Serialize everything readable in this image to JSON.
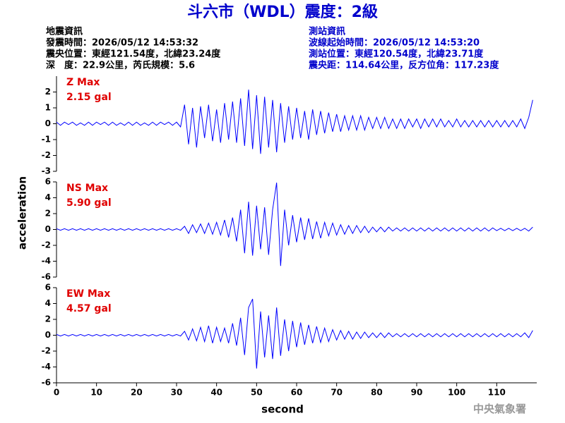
{
  "title": "斗六市（WDL）震度：2級",
  "left_info": [
    "地震資訊",
    "發震時間：2026/05/12 14:53:32",
    "震央位置：東經121.54度，北緯23.24度",
    "深　度：22.9公里，芮氏規模：5.6"
  ],
  "right_info": [
    "測站資訊",
    "波線起始時間：2026/05/12 14:53:20",
    "測站位置：東經120.54度，北緯23.71度",
    "震央距：114.64公里，反方位角：117.23度"
  ],
  "xlabel": "second",
  "ylabel": "acceleration",
  "footer": "中央氣象署",
  "xlim": [
    0,
    120
  ],
  "xticks": [
    0,
    10,
    20,
    30,
    40,
    50,
    60,
    70,
    80,
    90,
    100,
    110
  ],
  "chart_data": [
    {
      "type": "line",
      "label": "Z Max",
      "max_label": "2.15 gal",
      "color": "#0000ff",
      "ylim": [
        -3,
        3
      ],
      "yticks": [
        -3,
        -2,
        -1,
        0,
        1,
        2
      ],
      "x": [
        0,
        1,
        2,
        3,
        4,
        5,
        6,
        7,
        8,
        9,
        10,
        11,
        12,
        13,
        14,
        15,
        16,
        17,
        18,
        19,
        20,
        21,
        22,
        23,
        24,
        25,
        26,
        27,
        28,
        29,
        30,
        31,
        32,
        33,
        34,
        35,
        36,
        37,
        38,
        39,
        40,
        41,
        42,
        43,
        44,
        45,
        46,
        47,
        48,
        49,
        50,
        51,
        52,
        53,
        54,
        55,
        56,
        57,
        58,
        59,
        60,
        61,
        62,
        63,
        64,
        65,
        66,
        67,
        68,
        69,
        70,
        71,
        72,
        73,
        74,
        75,
        76,
        77,
        78,
        79,
        80,
        81,
        82,
        83,
        84,
        85,
        86,
        87,
        88,
        89,
        90,
        91,
        92,
        93,
        94,
        95,
        96,
        97,
        98,
        99,
        100,
        101,
        102,
        103,
        104,
        105,
        106,
        107,
        108,
        109,
        110,
        111,
        112,
        113,
        114,
        115,
        116,
        117,
        118,
        119
      ],
      "values": [
        0.1,
        -0.1,
        0.1,
        -0.05,
        0.1,
        -0.1,
        0.05,
        -0.1,
        0.1,
        -0.1,
        0.1,
        -0.05,
        0.1,
        -0.1,
        0.1,
        -0.1,
        0.05,
        -0.1,
        0.1,
        -0.1,
        0.1,
        -0.1,
        0.05,
        -0.1,
        0.1,
        -0.1,
        0.1,
        -0.05,
        0.1,
        -0.1,
        0.1,
        -0.2,
        1.2,
        -1.3,
        1.0,
        -1.5,
        1.1,
        -0.9,
        1.2,
        -1.1,
        0.9,
        -1.2,
        1.3,
        -1.0,
        1.4,
        -1.2,
        1.6,
        -1.4,
        2.15,
        -1.6,
        1.8,
        -1.9,
        1.7,
        -1.5,
        1.5,
        -1.8,
        1.3,
        -1.2,
        1.1,
        -1.0,
        1.0,
        -0.9,
        0.8,
        -1.0,
        0.9,
        -0.7,
        0.8,
        -0.6,
        0.7,
        -0.5,
        0.6,
        -0.5,
        0.5,
        -0.4,
        0.5,
        -0.4,
        0.5,
        -0.4,
        0.4,
        -0.3,
        0.4,
        -0.3,
        0.4,
        -0.3,
        0.3,
        -0.3,
        0.3,
        -0.3,
        0.3,
        -0.2,
        0.3,
        -0.3,
        0.3,
        -0.2,
        0.3,
        -0.2,
        0.3,
        -0.2,
        0.2,
        -0.2,
        0.3,
        -0.2,
        0.2,
        -0.2,
        0.2,
        -0.2,
        0.2,
        -0.2,
        0.2,
        -0.2,
        0.2,
        -0.2,
        0.2,
        -0.2,
        0.2,
        -0.2,
        0.3,
        -0.3,
        0.4,
        1.5
      ]
    },
    {
      "type": "line",
      "label": "NS Max",
      "max_label": "5.90 gal",
      "color": "#0000ff",
      "ylim": [
        -6,
        6
      ],
      "yticks": [
        -6,
        -4,
        -2,
        0,
        2,
        4,
        6
      ],
      "x": [
        0,
        1,
        2,
        3,
        4,
        5,
        6,
        7,
        8,
        9,
        10,
        11,
        12,
        13,
        14,
        15,
        16,
        17,
        18,
        19,
        20,
        21,
        22,
        23,
        24,
        25,
        26,
        27,
        28,
        29,
        30,
        31,
        32,
        33,
        34,
        35,
        36,
        37,
        38,
        39,
        40,
        41,
        42,
        43,
        44,
        45,
        46,
        47,
        48,
        49,
        50,
        51,
        52,
        53,
        54,
        55,
        56,
        57,
        58,
        59,
        60,
        61,
        62,
        63,
        64,
        65,
        66,
        67,
        68,
        69,
        70,
        71,
        72,
        73,
        74,
        75,
        76,
        77,
        78,
        79,
        80,
        81,
        82,
        83,
        84,
        85,
        86,
        87,
        88,
        89,
        90,
        91,
        92,
        93,
        94,
        95,
        96,
        97,
        98,
        99,
        100,
        101,
        102,
        103,
        104,
        105,
        106,
        107,
        108,
        109,
        110,
        111,
        112,
        113,
        114,
        115,
        116,
        117,
        118,
        119
      ],
      "values": [
        0.1,
        -0.1,
        0.1,
        -0.1,
        0.1,
        -0.1,
        0.1,
        -0.1,
        0.1,
        -0.1,
        0.1,
        -0.1,
        0.1,
        -0.1,
        0.1,
        -0.1,
        0.1,
        -0.1,
        0.1,
        -0.1,
        0.1,
        -0.1,
        0.1,
        -0.1,
        0.1,
        -0.1,
        0.1,
        -0.1,
        0.1,
        -0.1,
        0.1,
        -0.1,
        0.4,
        -0.5,
        0.6,
        -0.4,
        0.7,
        -0.5,
        0.8,
        -0.6,
        0.9,
        -0.7,
        1.2,
        -1.0,
        1.5,
        -1.5,
        2.5,
        -3.0,
        3.5,
        -3.3,
        3.0,
        -2.5,
        2.8,
        -3.2,
        2.5,
        5.9,
        -4.6,
        2.5,
        -2.0,
        1.8,
        -1.6,
        1.5,
        -1.3,
        1.4,
        -1.2,
        1.0,
        -1.1,
        0.9,
        -0.8,
        0.8,
        -0.7,
        0.6,
        -0.6,
        0.5,
        -0.5,
        0.5,
        -0.4,
        0.4,
        -0.4,
        0.3,
        -0.3,
        0.3,
        -0.3,
        0.3,
        -0.2,
        0.2,
        -0.2,
        0.2,
        -0.2,
        0.2,
        -0.2,
        0.2,
        -0.2,
        0.2,
        -0.2,
        0.2,
        -0.2,
        0.2,
        -0.2,
        0.2,
        -0.2,
        0.2,
        -0.2,
        0.2,
        -0.2,
        0.2,
        -0.2,
        0.2,
        -0.2,
        0.2,
        -0.15,
        0.15,
        -0.15,
        0.15,
        -0.15,
        0.15,
        -0.15,
        0.15,
        -0.2,
        0.3
      ]
    },
    {
      "type": "line",
      "label": "EW Max",
      "max_label": "4.57 gal",
      "color": "#0000ff",
      "ylim": [
        -6,
        6
      ],
      "yticks": [
        -6,
        -4,
        -2,
        0,
        2,
        4,
        6
      ],
      "x": [
        0,
        1,
        2,
        3,
        4,
        5,
        6,
        7,
        8,
        9,
        10,
        11,
        12,
        13,
        14,
        15,
        16,
        17,
        18,
        19,
        20,
        21,
        22,
        23,
        24,
        25,
        26,
        27,
        28,
        29,
        30,
        31,
        32,
        33,
        34,
        35,
        36,
        37,
        38,
        39,
        40,
        41,
        42,
        43,
        44,
        45,
        46,
        47,
        48,
        49,
        50,
        51,
        52,
        53,
        54,
        55,
        56,
        57,
        58,
        59,
        60,
        61,
        62,
        63,
        64,
        65,
        66,
        67,
        68,
        69,
        70,
        71,
        72,
        73,
        74,
        75,
        76,
        77,
        78,
        79,
        80,
        81,
        82,
        83,
        84,
        85,
        86,
        87,
        88,
        89,
        90,
        91,
        92,
        93,
        94,
        95,
        96,
        97,
        98,
        99,
        100,
        101,
        102,
        103,
        104,
        105,
        106,
        107,
        108,
        109,
        110,
        111,
        112,
        113,
        114,
        115,
        116,
        117,
        118,
        119
      ],
      "values": [
        0.1,
        -0.1,
        0.1,
        -0.1,
        0.1,
        -0.1,
        0.1,
        -0.1,
        0.1,
        -0.1,
        0.1,
        -0.1,
        0.1,
        -0.1,
        0.1,
        -0.1,
        0.1,
        -0.1,
        0.1,
        -0.1,
        0.1,
        -0.1,
        0.1,
        -0.1,
        0.1,
        -0.1,
        0.1,
        -0.1,
        0.1,
        -0.1,
        0.1,
        -0.1,
        0.5,
        -0.6,
        0.8,
        -0.7,
        1.0,
        -0.8,
        1.2,
        -1.0,
        1.0,
        -0.8,
        0.9,
        -1.0,
        1.5,
        -1.3,
        2.2,
        -2.5,
        3.5,
        4.57,
        -4.2,
        3.0,
        -2.8,
        2.5,
        -3.0,
        3.5,
        -2.6,
        2.0,
        -2.0,
        1.8,
        -1.5,
        1.6,
        -1.2,
        1.3,
        -1.0,
        1.1,
        -0.9,
        0.9,
        -0.8,
        0.7,
        -0.6,
        0.6,
        -0.5,
        0.5,
        -0.5,
        0.4,
        -0.4,
        0.4,
        -0.3,
        0.3,
        -0.3,
        0.3,
        -0.3,
        0.3,
        -0.2,
        0.2,
        -0.2,
        0.2,
        -0.2,
        0.2,
        -0.2,
        0.2,
        -0.2,
        0.2,
        -0.2,
        0.2,
        -0.2,
        0.2,
        -0.2,
        0.2,
        -0.2,
        0.2,
        -0.2,
        0.2,
        -0.2,
        0.2,
        -0.2,
        0.2,
        -0.2,
        0.2,
        -0.2,
        0.2,
        -0.2,
        0.2,
        -0.2,
        0.2,
        -0.2,
        0.3,
        -0.3,
        0.6
      ]
    }
  ]
}
